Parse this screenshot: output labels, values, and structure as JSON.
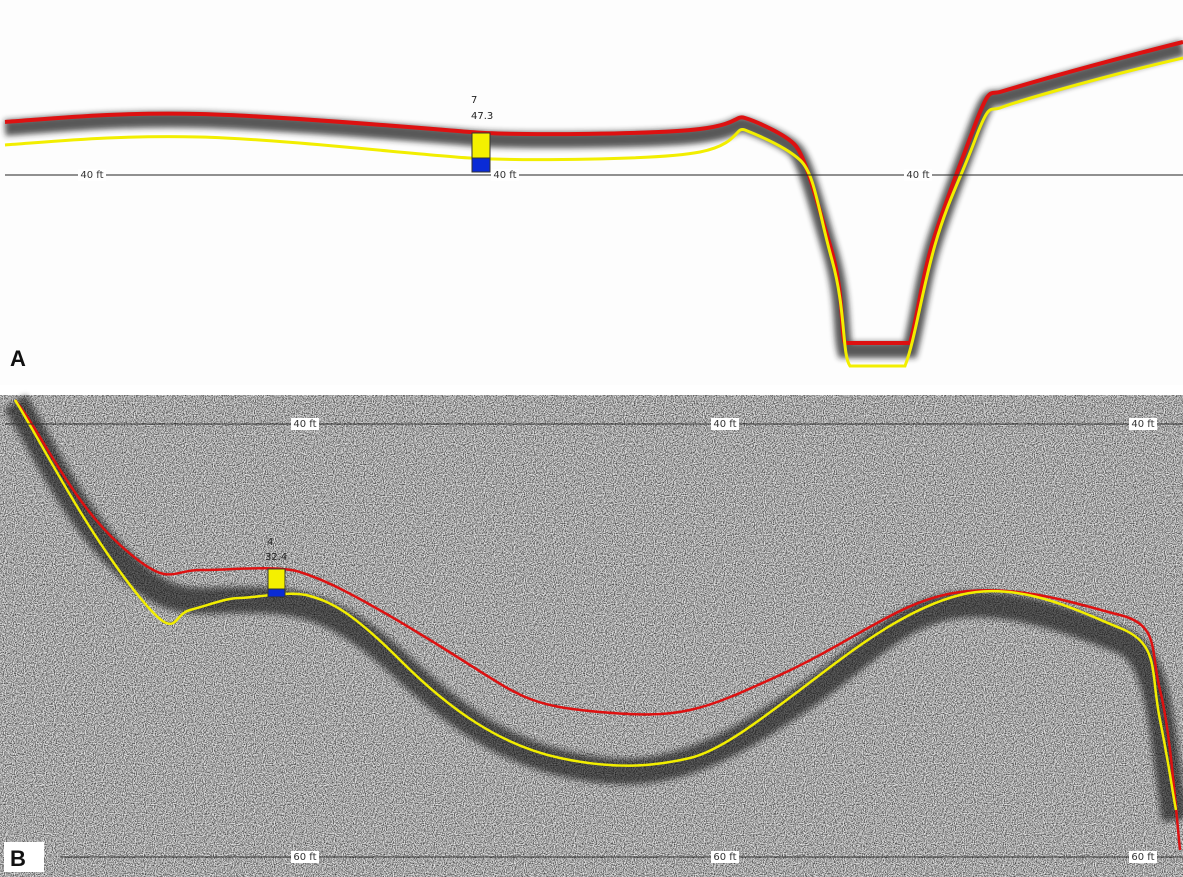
{
  "panels": [
    {
      "label": "A",
      "depth_lines": [
        {
          "labels": [
            "40 ft",
            "40 ft",
            "40 ft"
          ]
        }
      ],
      "marker": {
        "count": "7",
        "depth": "47.3"
      }
    },
    {
      "label": "B",
      "depth_lines": [
        {
          "labels": [
            "40 ft",
            "40 ft",
            "40 ft"
          ]
        },
        {
          "labels": [
            "60 ft",
            "60 ft",
            "60 ft"
          ]
        }
      ],
      "marker": {
        "count": "4",
        "depth": "32.4"
      }
    }
  ]
}
